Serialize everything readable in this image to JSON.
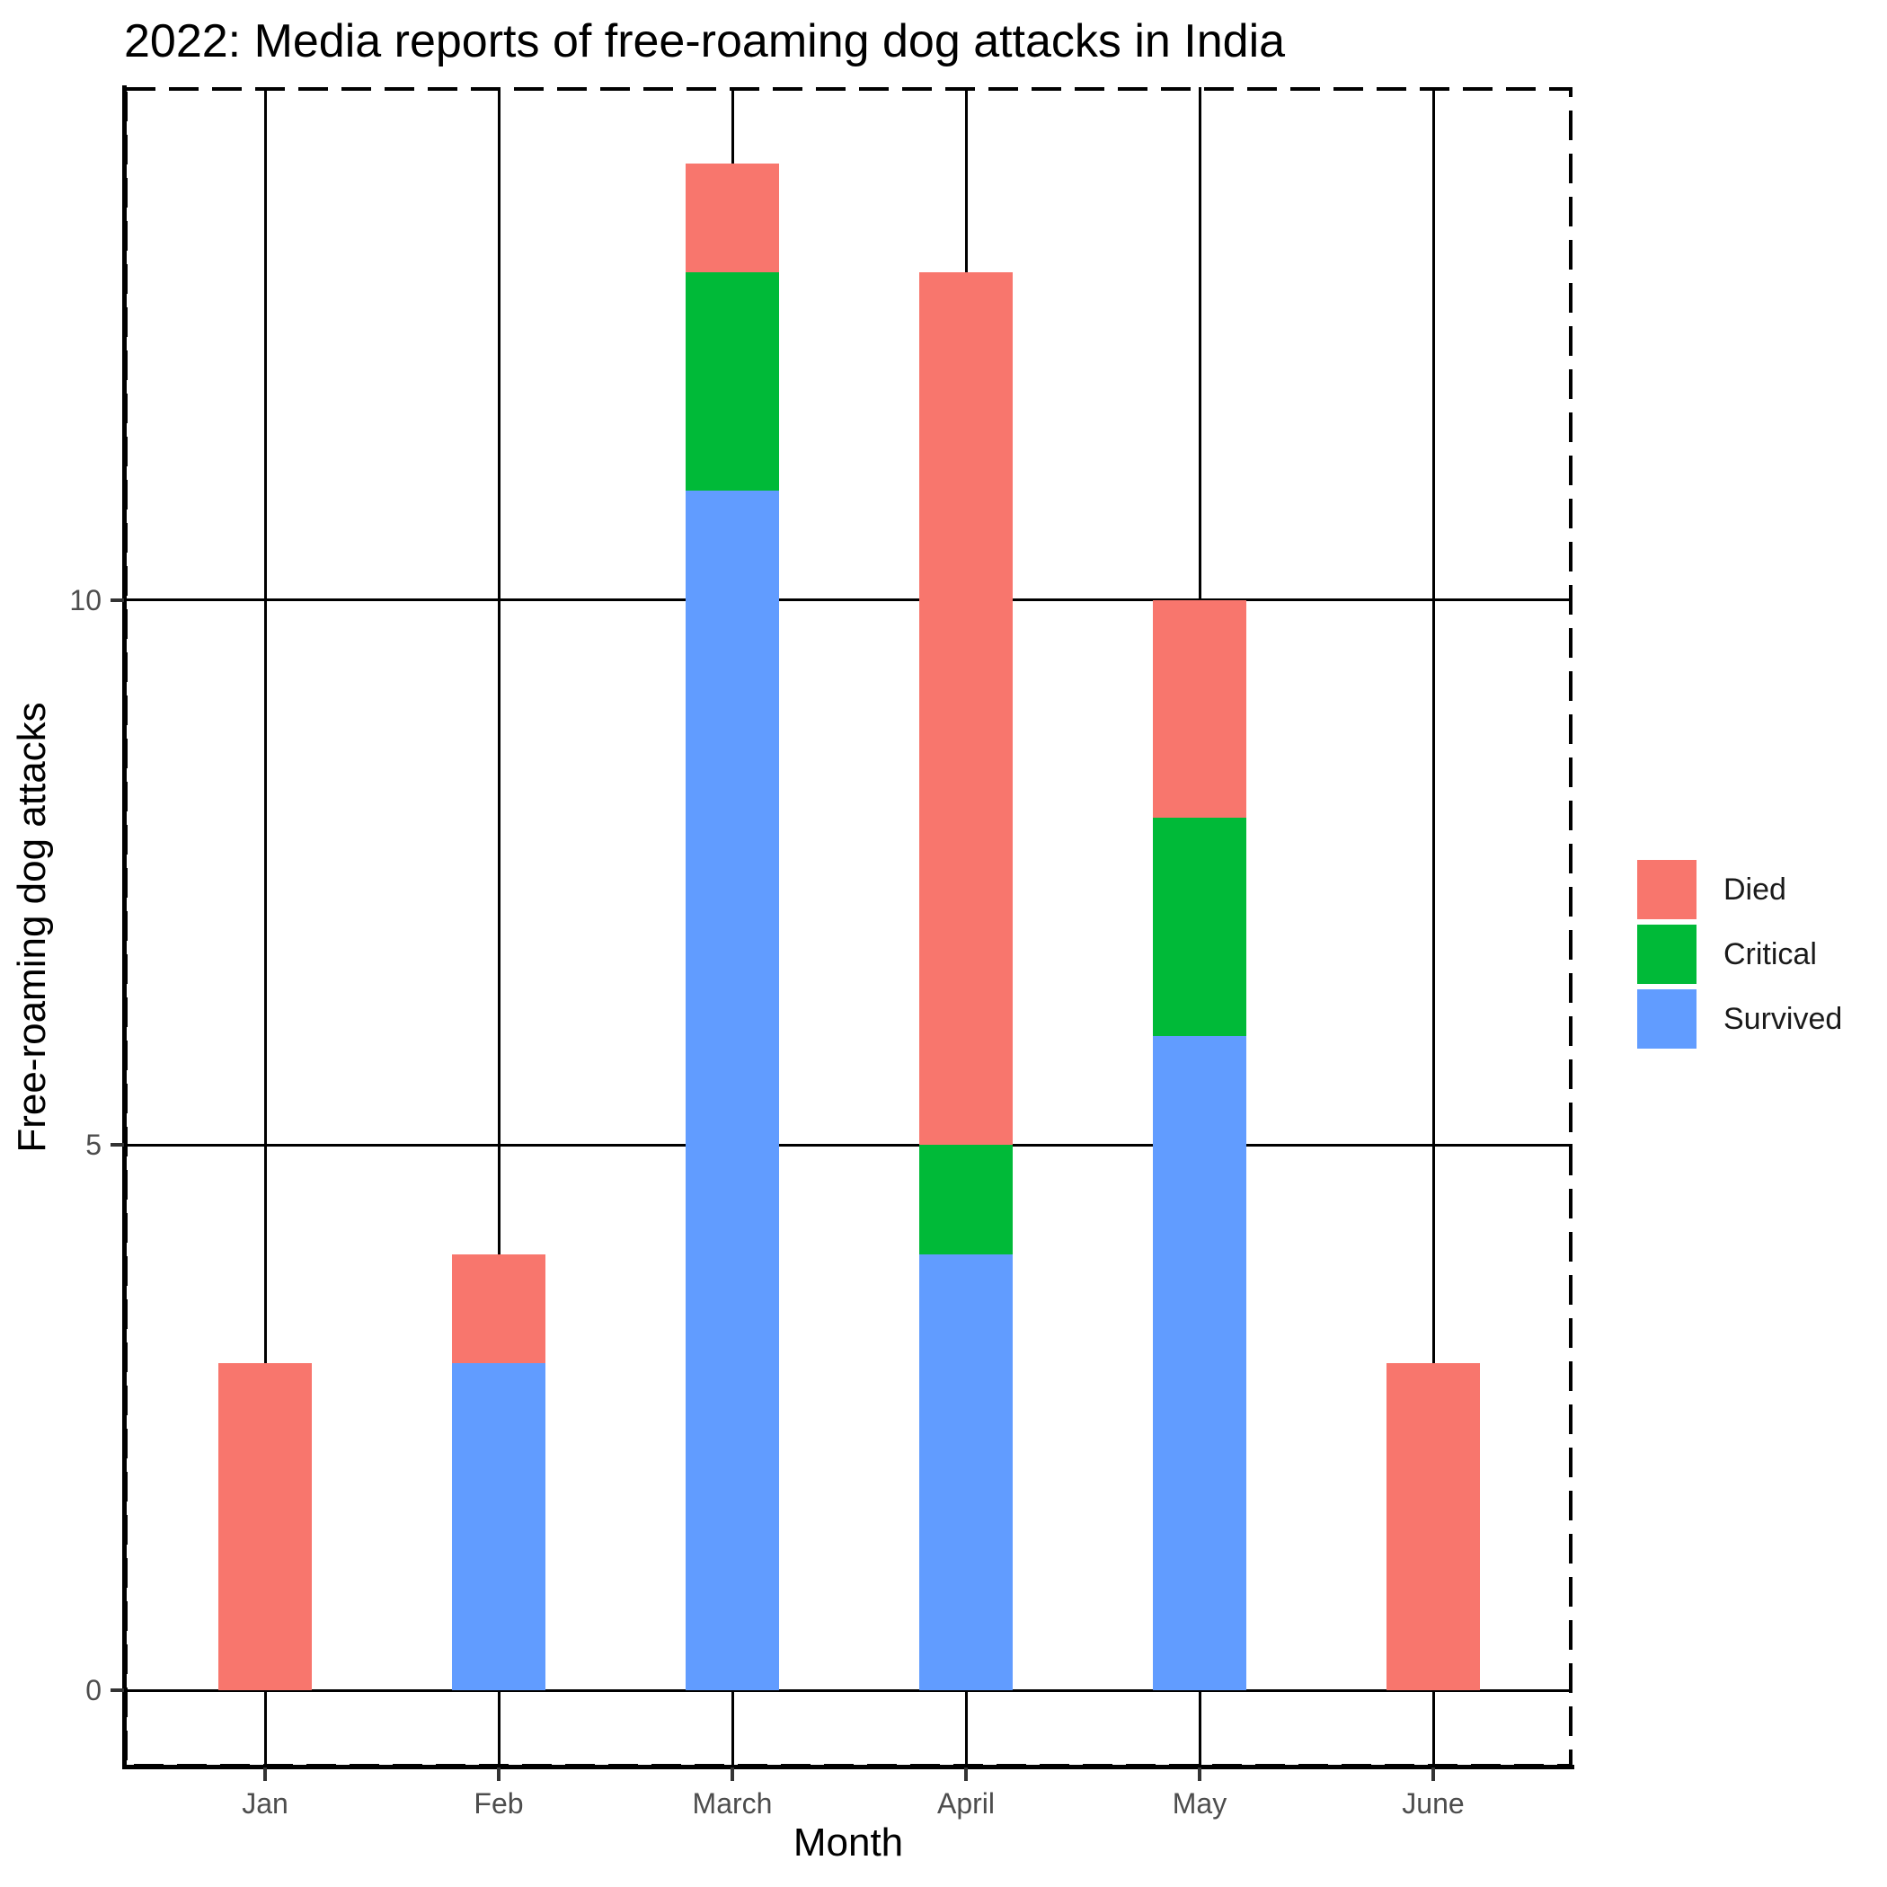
{
  "chart_data": {
    "type": "bar",
    "stacked": true,
    "title": "2022: Media reports of free-roaming dog attacks in India",
    "xlabel": "Month",
    "ylabel": "Free-roaming dog attacks",
    "categories": [
      "Jan",
      "Feb",
      "March",
      "April",
      "May",
      "June"
    ],
    "series": [
      {
        "name": "Survived",
        "color": "#619CFF",
        "values": [
          0,
          3,
          11,
          4,
          6,
          0
        ]
      },
      {
        "name": "Critical",
        "color": "#00BA38",
        "values": [
          0,
          0,
          2,
          1,
          2,
          0
        ]
      },
      {
        "name": "Died",
        "color": "#F8766D",
        "values": [
          3,
          1,
          1,
          8,
          2,
          3
        ]
      }
    ],
    "stack_order_bottom_to_top": [
      "Survived",
      "Critical",
      "Died"
    ],
    "legend_order_top_to_bottom": [
      "Died",
      "Critical",
      "Survived"
    ],
    "totals_per_month": [
      3,
      4,
      14,
      13,
      10,
      3
    ],
    "yticks": [
      0,
      5,
      10
    ],
    "ylim": [
      0,
      14.7
    ],
    "grid": "black major gridlines, horizontal and vertical",
    "panel_border": "black dashed rectangle, solid black left and bottom axis lines",
    "legend_position": "right",
    "colors": {
      "died": "#F8766D",
      "critical": "#00BA38",
      "survived": "#619CFF",
      "gridline": "#000000",
      "axis_line": "#000000",
      "tick_mark": "#333333",
      "tick_label": "#4d4d4d",
      "title_text": "#000000"
    }
  }
}
